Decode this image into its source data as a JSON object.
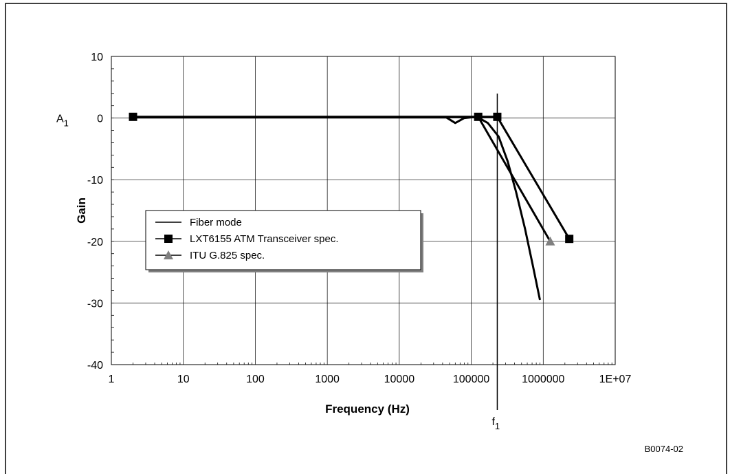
{
  "chart_data": {
    "type": "line",
    "xscale": "log",
    "xlim": [
      1,
      10000000
    ],
    "ylim": [
      -40,
      10
    ],
    "grid": true,
    "legend_position": "left",
    "xlabel": "Frequency (Hz)",
    "ylabel": "Gain",
    "x_tick_labels": [
      "1",
      "10",
      "100",
      "1000",
      "10000",
      "100000",
      "1000000",
      "1E+07"
    ],
    "y_tick_labels": [
      "10",
      "0",
      "-10",
      "-20",
      "-30",
      "-40"
    ],
    "x_ticks": [
      1,
      10,
      100,
      1000,
      10000,
      100000,
      1000000,
      10000000
    ],
    "y_ticks": [
      10,
      0,
      -10,
      -20,
      -30,
      -40
    ],
    "series": [
      {
        "name": "Fiber mode",
        "color": "#000000",
        "marker": "none",
        "points": [
          [
            2,
            0.1
          ],
          [
            45000,
            0.1
          ],
          [
            60000,
            -0.8
          ],
          [
            80000,
            0.0
          ],
          [
            120000,
            0.2
          ],
          [
            170000,
            -0.8
          ],
          [
            240000,
            -3.0
          ],
          [
            320000,
            -7.0
          ],
          [
            420000,
            -12.0
          ],
          [
            560000,
            -18.0
          ],
          [
            720000,
            -24.0
          ],
          [
            900000,
            -29.5
          ]
        ]
      },
      {
        "name": "LXT6155 ATM Transceiver spec.",
        "color": "#000000",
        "marker": "square",
        "points": [
          [
            2,
            0.2
          ],
          [
            125000,
            0.2
          ],
          [
            230000,
            0.2
          ],
          [
            2300000,
            -19.6
          ]
        ]
      },
      {
        "name": "ITU G.825 spec.",
        "color": "#000000",
        "marker_color": "#808080",
        "marker": "triangle",
        "points": [
          [
            125000,
            0.2
          ],
          [
            1250000,
            -20.0
          ]
        ]
      }
    ],
    "annotations": {
      "a1_label": "A",
      "a1_sub": "1",
      "f1_label": "f",
      "f1_sub": "1",
      "f1_x": 230000
    }
  },
  "figure_id": "B0074-02"
}
